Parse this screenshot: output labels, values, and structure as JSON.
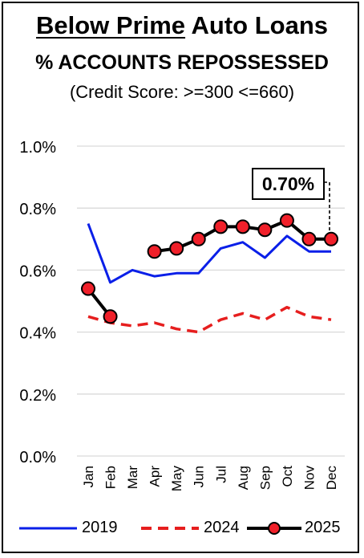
{
  "title": {
    "underlined": "Below Prime",
    "rest": " Auto Loans",
    "subtitle": "% ACCOUNTS REPOSSESSED",
    "note": "(Credit Score: >=300 <=660)"
  },
  "callout": {
    "text": "0.70%"
  },
  "colors": {
    "s2019": "#0a1fe8",
    "s2024": "#e61e1e",
    "s2025_line": "#000000",
    "s2025_marker": "#f0202a",
    "grid": "#d9d9d9"
  },
  "chart_data": {
    "type": "line",
    "categories": [
      "Jan",
      "Feb",
      "Mar",
      "Apr",
      "May",
      "Jun",
      "Jul",
      "Aug",
      "Sep",
      "Oct",
      "Nov",
      "Dec"
    ],
    "ylim": [
      0,
      1.0
    ],
    "yticks": [
      "0.0%",
      "0.2%",
      "0.4%",
      "0.6%",
      "0.8%",
      "1.0%"
    ],
    "ytick_values": [
      0,
      0.2,
      0.4,
      0.6,
      0.8,
      1.0
    ],
    "grid": true,
    "legend_position": "bottom",
    "series": [
      {
        "name": "2019",
        "style": "solid",
        "values": [
          0.75,
          0.56,
          0.6,
          0.58,
          0.59,
          0.59,
          0.67,
          0.69,
          0.64,
          0.71,
          0.66,
          0.66
        ]
      },
      {
        "name": "2024",
        "style": "dashed",
        "values": [
          0.45,
          0.43,
          0.42,
          0.43,
          0.41,
          0.4,
          0.44,
          0.46,
          0.44,
          0.48,
          0.45,
          0.44
        ]
      },
      {
        "name": "2025",
        "style": "markers",
        "segments": [
          [
            0,
            1
          ],
          [
            3,
            11
          ]
        ],
        "values": [
          0.54,
          0.45,
          null,
          0.66,
          0.67,
          0.7,
          0.74,
          0.74,
          0.73,
          0.76,
          0.7,
          0.7
        ]
      }
    ]
  }
}
